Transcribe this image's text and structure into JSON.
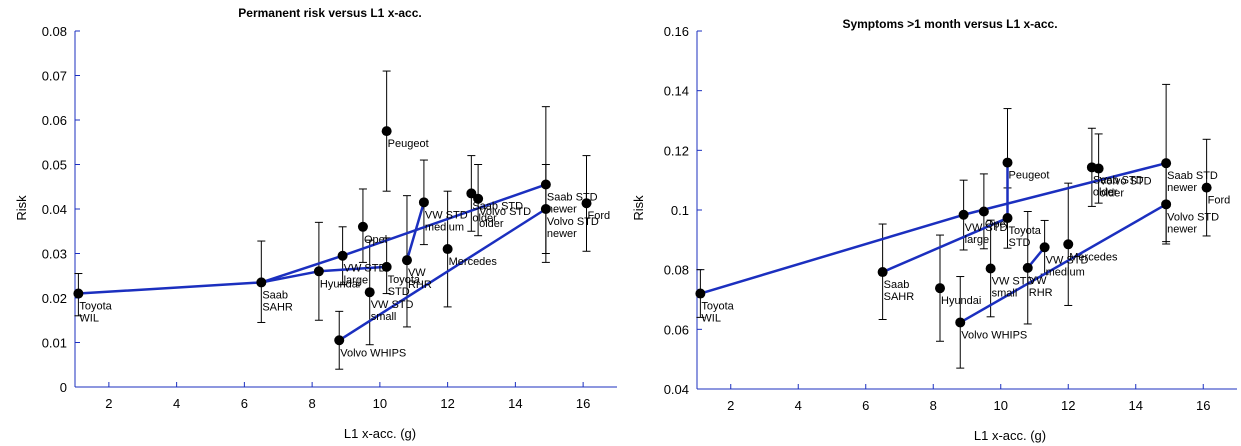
{
  "chart_data": [
    {
      "type": "scatter",
      "title": "Permanent risk versus L1 x-acc.",
      "xlabel": "L1 x-acc. (g)",
      "ylabel": "Risk",
      "xlim": [
        1,
        17
      ],
      "ylim": [
        0,
        0.08
      ],
      "xticks": [
        2,
        4,
        6,
        8,
        10,
        12,
        14,
        16
      ],
      "yticks": [
        0,
        0.01,
        0.02,
        0.03,
        0.04,
        0.05,
        0.06,
        0.07,
        0.08
      ],
      "ytick_labels": [
        "0",
        "0.01",
        "0.02",
        "0.03",
        "0.04",
        "0.05",
        "0.06",
        "0.07",
        "0.08"
      ],
      "grid": false,
      "points": [
        {
          "label": "Toyota\nWIL",
          "x": 1.1,
          "y": 0.021,
          "lo": 0.016,
          "hi": 0.0255
        },
        {
          "label": "Saab\nSAHR",
          "x": 6.5,
          "y": 0.0235,
          "lo": 0.0145,
          "hi": 0.0328
        },
        {
          "label": "Hyundai",
          "x": 8.2,
          "y": 0.026,
          "lo": 0.015,
          "hi": 0.037
        },
        {
          "label": "VW STD\nlarge",
          "x": 8.9,
          "y": 0.0295,
          "lo": 0.023,
          "hi": 0.036
        },
        {
          "label": "Volvo WHIPS",
          "x": 8.8,
          "y": 0.0105,
          "lo": 0.004,
          "hi": 0.017
        },
        {
          "label": "Opel",
          "x": 9.5,
          "y": 0.036,
          "lo": 0.028,
          "hi": 0.0445
        },
        {
          "label": "VW STD\nsmall",
          "x": 9.7,
          "y": 0.0213,
          "lo": 0.0095,
          "hi": 0.033
        },
        {
          "label": "Toyota\nSTD",
          "x": 10.2,
          "y": 0.027,
          "lo": 0.021,
          "hi": 0.0335
        },
        {
          "label": "Peugeot",
          "x": 10.2,
          "y": 0.0575,
          "lo": 0.044,
          "hi": 0.071
        },
        {
          "label": "VW\nRHR",
          "x": 10.8,
          "y": 0.0285,
          "lo": 0.0135,
          "hi": 0.043
        },
        {
          "label": "VW STD\nmedium",
          "x": 11.3,
          "y": 0.0415,
          "lo": 0.032,
          "hi": 0.051
        },
        {
          "label": "Mercedes",
          "x": 12.0,
          "y": 0.031,
          "lo": 0.018,
          "hi": 0.044
        },
        {
          "label": "Saab STD\nolder",
          "x": 12.7,
          "y": 0.0435,
          "lo": 0.035,
          "hi": 0.052
        },
        {
          "label": "Volvo STD\nolder",
          "x": 12.9,
          "y": 0.0423,
          "lo": 0.034,
          "hi": 0.05
        },
        {
          "label": "Saab STD\nnewer",
          "x": 14.9,
          "y": 0.0455,
          "lo": 0.028,
          "hi": 0.063
        },
        {
          "label": "Volvo STD\nnewer",
          "x": 14.9,
          "y": 0.04,
          "lo": 0.03,
          "hi": 0.05
        },
        {
          "label": "Ford",
          "x": 16.1,
          "y": 0.0413,
          "lo": 0.0305,
          "hi": 0.052
        }
      ],
      "lines": [
        [
          [
            1.1,
            0.021
          ],
          [
            6.5,
            0.0235
          ],
          [
            8.2,
            0.026
          ],
          [
            10.2,
            0.027
          ]
        ],
        [
          [
            6.5,
            0.0235
          ],
          [
            8.9,
            0.0295
          ],
          [
            14.9,
            0.0455
          ]
        ],
        [
          [
            8.8,
            0.0105
          ],
          [
            14.9,
            0.04
          ]
        ],
        [
          [
            10.8,
            0.0285
          ],
          [
            11.3,
            0.0415
          ]
        ]
      ]
    },
    {
      "type": "scatter",
      "title": "Symptoms >1 month versus L1 x-acc.",
      "xlabel": "L1 x-acc. (g)",
      "ylabel": "Risk",
      "xlim": [
        1,
        17
      ],
      "ylim": [
        0.04,
        0.16
      ],
      "xticks": [
        2,
        4,
        6,
        8,
        10,
        12,
        14,
        16
      ],
      "yticks": [
        0.04,
        0.06,
        0.08,
        0.1,
        0.12,
        0.14,
        0.16
      ],
      "ytick_labels": [
        "0.04",
        "0.06",
        "0.08",
        "0.1",
        "0.12",
        "0.14",
        "0.16"
      ],
      "grid": false,
      "points": [
        {
          "label": "Toyota\nWIL",
          "x": 1.1,
          "y": 0.072,
          "lo": 0.064,
          "hi": 0.08
        },
        {
          "label": "Saab\nSAHR",
          "x": 6.5,
          "y": 0.0792,
          "lo": 0.0633,
          "hi": 0.0953
        },
        {
          "label": "Hyundai",
          "x": 8.2,
          "y": 0.0738,
          "lo": 0.056,
          "hi": 0.0916
        },
        {
          "label": "VW STD\nlarge",
          "x": 8.9,
          "y": 0.0984,
          "lo": 0.0866,
          "hi": 0.11
        },
        {
          "label": "Volvo WHIPS",
          "x": 8.8,
          "y": 0.0623,
          "lo": 0.047,
          "hi": 0.0777
        },
        {
          "label": "Opel",
          "x": 9.5,
          "y": 0.0995,
          "lo": 0.087,
          "hi": 0.1121
        },
        {
          "label": "VW STD\nsmall",
          "x": 9.7,
          "y": 0.0804,
          "lo": 0.0642,
          "hi": 0.0966
        },
        {
          "label": "Toyota\nSTD",
          "x": 10.2,
          "y": 0.0973,
          "lo": 0.0872,
          "hi": 0.1074
        },
        {
          "label": "Peugeot",
          "x": 10.2,
          "y": 0.1159,
          "lo": 0.0976,
          "hi": 0.134
        },
        {
          "label": "VW\nRHR",
          "x": 10.8,
          "y": 0.0806,
          "lo": 0.0618,
          "hi": 0.0995
        },
        {
          "label": "VW STD\nmedium",
          "x": 11.3,
          "y": 0.0875,
          "lo": 0.0785,
          "hi": 0.0965
        },
        {
          "label": "Mercedes",
          "x": 12.0,
          "y": 0.0885,
          "lo": 0.068,
          "hi": 0.109
        },
        {
          "label": "Saab STD\nolder",
          "x": 12.7,
          "y": 0.1143,
          "lo": 0.1012,
          "hi": 0.1274
        },
        {
          "label": "Volvo STD\nolder",
          "x": 12.9,
          "y": 0.1139,
          "lo": 0.1023,
          "hi": 0.1255
        },
        {
          "label": "Saab STD\nnewer",
          "x": 14.9,
          "y": 0.1157,
          "lo": 0.0894,
          "hi": 0.1421
        },
        {
          "label": "Volvo STD\nnewer",
          "x": 14.9,
          "y": 0.1019,
          "lo": 0.0886,
          "hi": 0.1152
        },
        {
          "label": "Ford",
          "x": 16.1,
          "y": 0.1075,
          "lo": 0.0913,
          "hi": 0.1237
        }
      ],
      "lines": [
        [
          [
            1.1,
            0.072
          ],
          [
            8.9,
            0.0984
          ],
          [
            14.9,
            0.1157
          ]
        ],
        [
          [
            6.5,
            0.0792
          ],
          [
            10.2,
            0.0973
          ],
          [
            10.2,
            0.1159
          ]
        ],
        [
          [
            8.8,
            0.0623
          ],
          [
            14.9,
            0.1019
          ]
        ],
        [
          [
            10.8,
            0.0806
          ],
          [
            11.3,
            0.0875
          ]
        ]
      ]
    }
  ]
}
